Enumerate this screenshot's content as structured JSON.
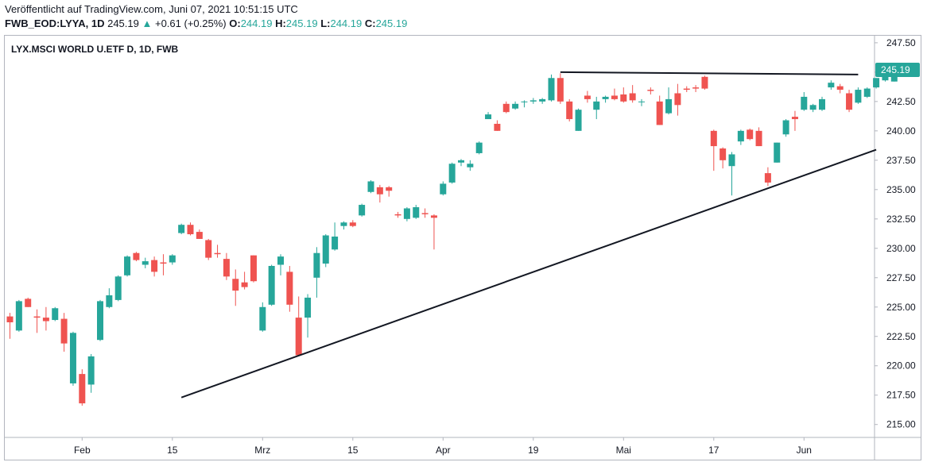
{
  "header": {
    "published": "Veröffentlicht auf TradingView.com, Juni 07, 2021 10:51:15 UTC",
    "symbol": "FWB_EOD:LYYA, 1D",
    "last": "245.19",
    "change": "+0.61 (+0.25%)",
    "o_label": "O:",
    "o_value": "244.19",
    "h_label": "H:",
    "h_value": "245.19",
    "l_label": "L:",
    "l_value": "244.19",
    "c_label": "C:",
    "c_value": "245.19"
  },
  "chart_data": {
    "type": "candlestick",
    "title": "LYX.MSCI WORLD U.ETF D, 1D, FWB",
    "ylim": [
      213.9,
      248.1
    ],
    "yticks": [
      "215.00",
      "217.50",
      "220.00",
      "222.50",
      "225.00",
      "227.50",
      "230.00",
      "232.50",
      "235.00",
      "237.50",
      "240.00",
      "242.50",
      "245.00",
      "247.50"
    ],
    "xticks": [
      {
        "label": "Feb",
        "index": 8
      },
      {
        "label": "15",
        "index": 18
      },
      {
        "label": "Mrz",
        "index": 28
      },
      {
        "label": "15",
        "index": 38
      },
      {
        "label": "Apr",
        "index": 48
      },
      {
        "label": "19",
        "index": 58
      },
      {
        "label": "Mai",
        "index": 68
      },
      {
        "label": "17",
        "index": 78
      },
      {
        "label": "Jun",
        "index": 88
      }
    ],
    "last_price_label": "245.19",
    "colors": {
      "up": "#26a69a",
      "down": "#ef5350",
      "trend": "#131722",
      "label_bg": "#26a69a"
    },
    "candles": [
      {
        "o": 224.2,
        "h": 224.5,
        "l": 222.3,
        "c": 223.7
      },
      {
        "o": 223.0,
        "h": 225.6,
        "l": 222.9,
        "c": 225.5
      },
      {
        "o": 225.7,
        "h": 225.8,
        "l": 225.0,
        "c": 225.0
      },
      {
        "o": 224.2,
        "h": 224.8,
        "l": 222.8,
        "c": 224.1
      },
      {
        "o": 224.1,
        "h": 225.0,
        "l": 223.0,
        "c": 223.8
      },
      {
        "o": 223.9,
        "h": 225.0,
        "l": 223.8,
        "c": 224.9
      },
      {
        "o": 224.0,
        "h": 224.5,
        "l": 221.2,
        "c": 221.9
      },
      {
        "o": 218.5,
        "h": 222.9,
        "l": 218.3,
        "c": 222.8
      },
      {
        "o": 219.3,
        "h": 219.7,
        "l": 216.6,
        "c": 216.8
      },
      {
        "o": 218.4,
        "h": 221.0,
        "l": 217.7,
        "c": 220.8
      },
      {
        "o": 222.2,
        "h": 225.6,
        "l": 222.1,
        "c": 225.5
      },
      {
        "o": 225.0,
        "h": 226.6,
        "l": 224.9,
        "c": 226.0
      },
      {
        "o": 225.6,
        "h": 227.7,
        "l": 225.5,
        "c": 227.6
      },
      {
        "o": 227.7,
        "h": 229.4,
        "l": 227.6,
        "c": 229.3
      },
      {
        "o": 229.6,
        "h": 229.7,
        "l": 228.9,
        "c": 229.0
      },
      {
        "o": 228.6,
        "h": 229.2,
        "l": 228.3,
        "c": 228.9
      },
      {
        "o": 229.0,
        "h": 229.3,
        "l": 227.6,
        "c": 228.0
      },
      {
        "o": 228.8,
        "h": 229.5,
        "l": 227.7,
        "c": 228.7
      },
      {
        "o": 228.8,
        "h": 229.5,
        "l": 228.6,
        "c": 229.4
      },
      {
        "o": 231.3,
        "h": 232.1,
        "l": 231.2,
        "c": 232.0
      },
      {
        "o": 232.0,
        "h": 232.2,
        "l": 231.1,
        "c": 231.2
      },
      {
        "o": 231.4,
        "h": 231.6,
        "l": 230.8,
        "c": 230.8
      },
      {
        "o": 230.7,
        "h": 230.8,
        "l": 229.0,
        "c": 229.2
      },
      {
        "o": 229.6,
        "h": 230.3,
        "l": 229.2,
        "c": 229.5
      },
      {
        "o": 229.1,
        "h": 229.6,
        "l": 227.3,
        "c": 227.6
      },
      {
        "o": 227.4,
        "h": 228.2,
        "l": 225.1,
        "c": 226.4
      },
      {
        "o": 227.1,
        "h": 228.0,
        "l": 226.5,
        "c": 226.7
      },
      {
        "o": 229.4,
        "h": 229.4,
        "l": 227.1,
        "c": 227.2
      },
      {
        "o": 223.0,
        "h": 225.4,
        "l": 222.9,
        "c": 225.0
      },
      {
        "o": 225.2,
        "h": 228.6,
        "l": 225.1,
        "c": 228.5
      },
      {
        "o": 228.6,
        "h": 229.5,
        "l": 227.7,
        "c": 229.3
      },
      {
        "o": 228.0,
        "h": 228.5,
        "l": 224.6,
        "c": 225.2
      },
      {
        "o": 224.1,
        "h": 225.9,
        "l": 220.9,
        "c": 220.9
      },
      {
        "o": 224.1,
        "h": 226.1,
        "l": 222.4,
        "c": 225.8
      },
      {
        "o": 227.5,
        "h": 230.1,
        "l": 225.8,
        "c": 229.6
      },
      {
        "o": 228.7,
        "h": 231.2,
        "l": 228.4,
        "c": 231.1
      },
      {
        "o": 229.9,
        "h": 232.2,
        "l": 229.8,
        "c": 231.0
      },
      {
        "o": 231.9,
        "h": 232.3,
        "l": 231.6,
        "c": 232.2
      },
      {
        "o": 232.2,
        "h": 232.4,
        "l": 231.8,
        "c": 231.9
      },
      {
        "o": 232.8,
        "h": 233.8,
        "l": 232.7,
        "c": 233.7
      },
      {
        "o": 234.8,
        "h": 235.8,
        "l": 234.7,
        "c": 235.7
      },
      {
        "o": 235.2,
        "h": 235.4,
        "l": 233.9,
        "c": 234.6
      },
      {
        "o": 235.2,
        "h": 235.3,
        "l": 234.4,
        "c": 234.9
      },
      {
        "o": 232.9,
        "h": 233.1,
        "l": 232.6,
        "c": 232.8
      },
      {
        "o": 232.5,
        "h": 233.5,
        "l": 232.3,
        "c": 233.4
      },
      {
        "o": 232.6,
        "h": 233.7,
        "l": 232.5,
        "c": 233.5
      },
      {
        "o": 233.0,
        "h": 233.4,
        "l": 232.6,
        "c": 232.9
      },
      {
        "o": 232.8,
        "h": 232.9,
        "l": 229.9,
        "c": 232.6
      },
      {
        "o": 234.6,
        "h": 235.7,
        "l": 234.5,
        "c": 235.5
      },
      {
        "o": 235.6,
        "h": 237.3,
        "l": 235.5,
        "c": 237.2
      },
      {
        "o": 237.3,
        "h": 237.6,
        "l": 237.0,
        "c": 237.5
      },
      {
        "o": 236.9,
        "h": 237.5,
        "l": 236.6,
        "c": 237.2
      },
      {
        "o": 238.1,
        "h": 239.1,
        "l": 238.0,
        "c": 239.0
      },
      {
        "o": 241.0,
        "h": 241.6,
        "l": 241.2,
        "c": 241.4
      },
      {
        "o": 240.6,
        "h": 240.9,
        "l": 240.0,
        "c": 240.0
      },
      {
        "o": 242.3,
        "h": 242.5,
        "l": 241.5,
        "c": 241.6
      },
      {
        "o": 241.9,
        "h": 242.5,
        "l": 241.8,
        "c": 242.3
      },
      {
        "o": 242.5,
        "h": 242.6,
        "l": 242.0,
        "c": 242.5
      },
      {
        "o": 242.5,
        "h": 242.8,
        "l": 242.3,
        "c": 242.6
      },
      {
        "o": 242.5,
        "h": 242.8,
        "l": 242.3,
        "c": 242.7
      },
      {
        "o": 242.6,
        "h": 244.8,
        "l": 242.5,
        "c": 244.5
      },
      {
        "o": 244.5,
        "h": 244.9,
        "l": 242.3,
        "c": 242.5
      },
      {
        "o": 242.5,
        "h": 242.7,
        "l": 240.8,
        "c": 241.0
      },
      {
        "o": 240.0,
        "h": 241.9,
        "l": 240.0,
        "c": 241.8
      },
      {
        "o": 243.0,
        "h": 243.4,
        "l": 242.4,
        "c": 242.7
      },
      {
        "o": 241.8,
        "h": 242.9,
        "l": 241.0,
        "c": 242.5
      },
      {
        "o": 242.7,
        "h": 243.0,
        "l": 242.4,
        "c": 242.9
      },
      {
        "o": 243.0,
        "h": 243.6,
        "l": 242.6,
        "c": 242.7
      },
      {
        "o": 243.1,
        "h": 243.7,
        "l": 242.4,
        "c": 242.5
      },
      {
        "o": 243.2,
        "h": 243.9,
        "l": 242.4,
        "c": 242.6
      },
      {
        "o": 242.5,
        "h": 242.7,
        "l": 242.1,
        "c": 242.5
      },
      {
        "o": 243.5,
        "h": 243.7,
        "l": 243.1,
        "c": 243.4
      },
      {
        "o": 242.5,
        "h": 243.0,
        "l": 240.5,
        "c": 240.5
      },
      {
        "o": 241.5,
        "h": 243.7,
        "l": 241.4,
        "c": 242.7
      },
      {
        "o": 243.2,
        "h": 244.0,
        "l": 241.3,
        "c": 242.2
      },
      {
        "o": 243.6,
        "h": 243.8,
        "l": 243.3,
        "c": 243.5
      },
      {
        "o": 243.7,
        "h": 243.9,
        "l": 243.3,
        "c": 243.6
      },
      {
        "o": 244.6,
        "h": 244.7,
        "l": 243.5,
        "c": 243.6
      },
      {
        "o": 240.0,
        "h": 240.1,
        "l": 236.6,
        "c": 238.7
      },
      {
        "o": 238.5,
        "h": 238.6,
        "l": 236.8,
        "c": 237.5
      },
      {
        "o": 237.0,
        "h": 238.2,
        "l": 234.5,
        "c": 238.0
      },
      {
        "o": 239.1,
        "h": 240.1,
        "l": 238.8,
        "c": 240.0
      },
      {
        "o": 240.1,
        "h": 240.2,
        "l": 239.2,
        "c": 239.3
      },
      {
        "o": 240.0,
        "h": 240.3,
        "l": 238.7,
        "c": 238.7
      },
      {
        "o": 236.4,
        "h": 236.9,
        "l": 235.3,
        "c": 235.6
      },
      {
        "o": 237.3,
        "h": 239.0,
        "l": 237.3,
        "c": 239.0
      },
      {
        "o": 239.7,
        "h": 241.0,
        "l": 239.5,
        "c": 240.9
      },
      {
        "o": 241.2,
        "h": 241.7,
        "l": 240.0,
        "c": 241.0
      },
      {
        "o": 241.8,
        "h": 243.3,
        "l": 241.7,
        "c": 242.9
      },
      {
        "o": 241.8,
        "h": 242.3,
        "l": 241.6,
        "c": 242.2
      },
      {
        "o": 241.8,
        "h": 242.9,
        "l": 241.7,
        "c": 242.7
      },
      {
        "o": 243.7,
        "h": 244.3,
        "l": 243.5,
        "c": 244.1
      },
      {
        "o": 243.8,
        "h": 244.0,
        "l": 243.2,
        "c": 243.5
      },
      {
        "o": 243.2,
        "h": 243.5,
        "l": 241.6,
        "c": 241.8
      },
      {
        "o": 242.4,
        "h": 243.7,
        "l": 242.3,
        "c": 243.5
      },
      {
        "o": 242.9,
        "h": 243.7,
        "l": 242.8,
        "c": 243.6
      },
      {
        "o": 243.7,
        "h": 244.5,
        "l": 243.6,
        "c": 244.5
      },
      {
        "o": 244.3,
        "h": 245.0,
        "l": 244.2,
        "c": 244.8
      },
      {
        "o": 244.2,
        "h": 245.3,
        "l": 244.2,
        "c": 245.2
      }
    ],
    "trendlines": [
      {
        "from": {
          "index": 19,
          "price": 217.3
        },
        "to": {
          "index": 96,
          "price": 238.4
        }
      },
      {
        "from": {
          "index": 61,
          "price": 245.0
        },
        "to": {
          "index": 94,
          "price": 244.8
        }
      }
    ]
  }
}
